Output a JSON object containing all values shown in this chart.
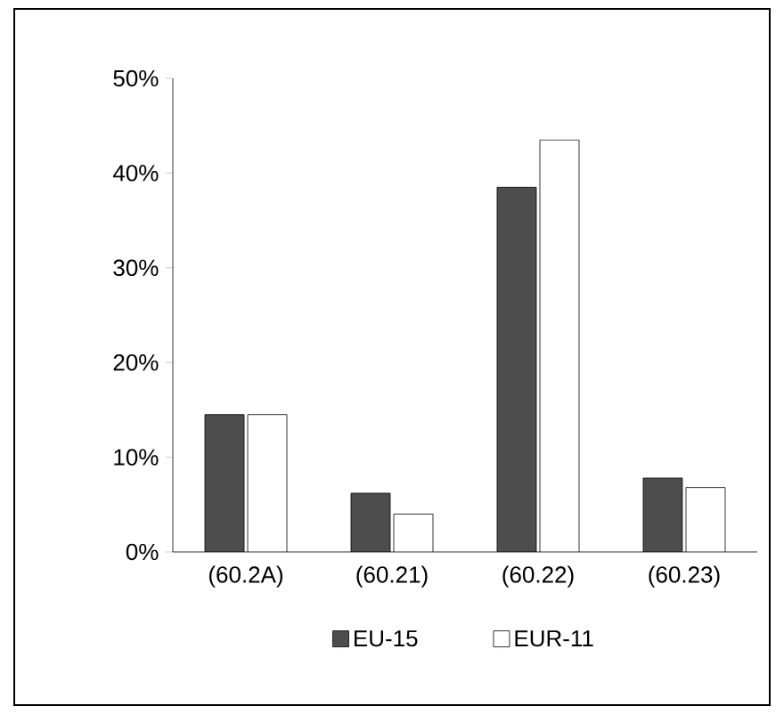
{
  "chart_data": {
    "type": "bar",
    "categories": [
      "(60.2A)",
      "(60.21)",
      "(60.22)",
      "(60.23)"
    ],
    "series": [
      {
        "name": "EU-15",
        "color": "#4d4d4d",
        "values": [
          14.5,
          6.2,
          38.5,
          7.8
        ]
      },
      {
        "name": "EUR-11",
        "color": "#ffffff",
        "values": [
          14.5,
          4,
          43.5,
          6.8
        ]
      }
    ],
    "ylim": [
      0,
      50
    ],
    "yticks": [
      {
        "value": 0,
        "label": "0%"
      },
      {
        "value": 10,
        "label": "10%"
      },
      {
        "value": 20,
        "label": "20%"
      },
      {
        "value": 30,
        "label": "30%"
      },
      {
        "value": 40,
        "label": "40%"
      },
      {
        "value": 50,
        "label": "50%"
      }
    ],
    "grid": false,
    "legend": "bottom"
  }
}
